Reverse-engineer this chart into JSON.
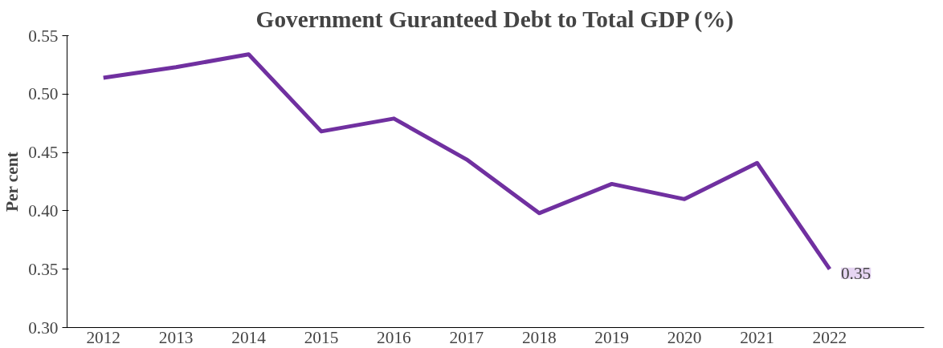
{
  "chart_data": {
    "type": "line",
    "title": "Government Guranteed Debt to Total GDP (%)",
    "ylabel": "Per cent",
    "categories": [
      "2012",
      "2013",
      "2014",
      "2015",
      "2016",
      "2017",
      "2018",
      "2019",
      "2020",
      "2021",
      "2022"
    ],
    "series": [
      {
        "color": "#7030a0",
        "values": [
          0.514,
          0.523,
          0.534,
          0.468,
          0.479,
          0.444,
          0.398,
          0.423,
          0.41,
          0.441,
          0.35
        ],
        "value_labels": [
          null,
          null,
          null,
          null,
          null,
          null,
          null,
          null,
          null,
          null,
          "0.35"
        ]
      }
    ],
    "ylim": [
      0.3,
      0.55
    ],
    "yticks": [
      {
        "value": 0.3,
        "label": "0.30"
      },
      {
        "value": 0.35,
        "label": "0.35"
      },
      {
        "value": 0.4,
        "label": "0.40"
      },
      {
        "value": 0.45,
        "label": "0.45"
      },
      {
        "value": 0.5,
        "label": "0.50"
      },
      {
        "value": 0.55,
        "label": "0.55"
      }
    ],
    "grid": false,
    "marker": "none",
    "line_style": "solid"
  }
}
